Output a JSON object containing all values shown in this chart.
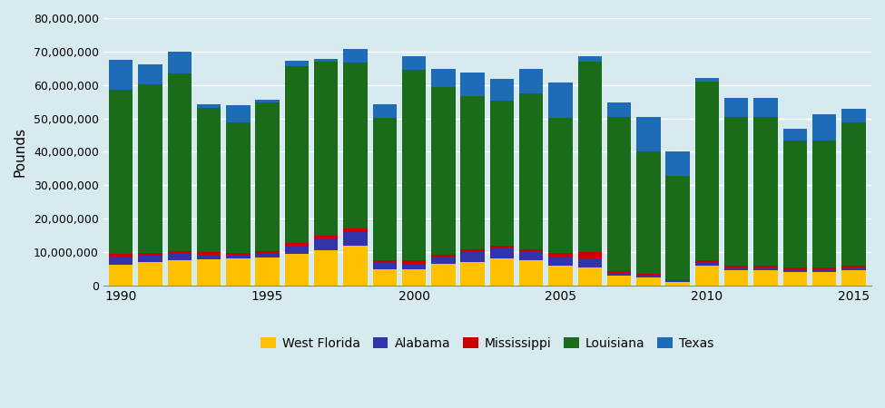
{
  "years": [
    1990,
    1991,
    1992,
    1993,
    1994,
    1995,
    1996,
    1997,
    1998,
    1999,
    2000,
    2001,
    2002,
    2003,
    2004,
    2005,
    2006,
    2007,
    2008,
    2009,
    2010,
    2011,
    2012,
    2013,
    2014,
    2015
  ],
  "west_florida": [
    6200000,
    7000000,
    7500000,
    7800000,
    8000000,
    8500000,
    9500000,
    10500000,
    12000000,
    5000000,
    5000000,
    6500000,
    7000000,
    8000000,
    7500000,
    6000000,
    5500000,
    3000000,
    2500000,
    1000000,
    6000000,
    4500000,
    4500000,
    4000000,
    4000000,
    4500000
  ],
  "alabama": [
    2500000,
    2000000,
    2000000,
    1500000,
    1000000,
    1000000,
    2500000,
    3500000,
    4000000,
    2000000,
    1500000,
    2000000,
    3000000,
    3000000,
    2500000,
    2500000,
    2500000,
    700000,
    500000,
    400000,
    1000000,
    800000,
    800000,
    700000,
    600000,
    700000
  ],
  "mississippi": [
    800000,
    800000,
    900000,
    800000,
    700000,
    700000,
    700000,
    900000,
    1200000,
    700000,
    1000000,
    800000,
    800000,
    900000,
    900000,
    1200000,
    2000000,
    700000,
    500000,
    300000,
    600000,
    700000,
    700000,
    600000,
    700000,
    700000
  ],
  "louisiana": [
    49000000,
    50500000,
    53000000,
    43000000,
    39000000,
    44500000,
    53000000,
    52000000,
    49500000,
    42500000,
    57000000,
    50000000,
    46000000,
    43500000,
    46500000,
    40500000,
    57000000,
    46000000,
    36500000,
    31000000,
    53500000,
    44500000,
    44500000,
    38000000,
    38000000,
    43000000
  ],
  "texas": [
    9000000,
    6000000,
    6500000,
    1000000,
    5200000,
    800000,
    1500000,
    800000,
    4000000,
    4000000,
    4000000,
    5500000,
    7000000,
    6500000,
    7500000,
    10500000,
    1500000,
    4500000,
    10500000,
    7500000,
    1000000,
    5500000,
    5500000,
    3500000,
    8000000,
    4000000
  ],
  "colors": {
    "west_florida": "#FFC000",
    "alabama": "#3333AA",
    "mississippi": "#CC0000",
    "louisiana": "#1A6B1A",
    "texas": "#1E6BB8"
  },
  "ylabel": "Pounds",
  "ylim": [
    0,
    80000000
  ],
  "yticks": [
    0,
    10000000,
    20000000,
    30000000,
    40000000,
    50000000,
    60000000,
    70000000,
    80000000
  ],
  "background_color": "#D6EAF0",
  "legend_labels": [
    "West Florida",
    "Alabama",
    "Mississippi",
    "Louisiana",
    "Texas"
  ]
}
